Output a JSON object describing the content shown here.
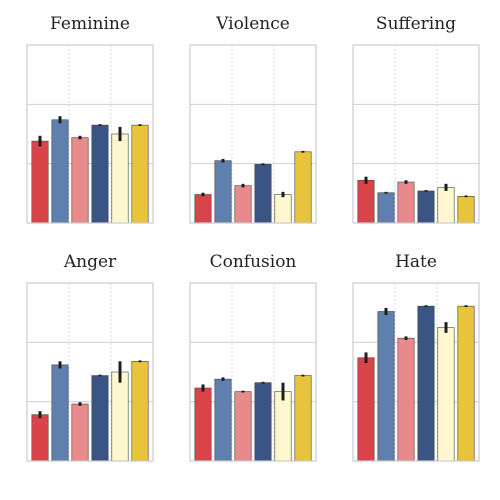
{
  "chart_data": [
    {
      "type": "bar",
      "title": "Feminine",
      "series_colors": [
        "#d9444a",
        "#5f7fae",
        "#e88a8c",
        "#3a5583",
        "#fff7cf",
        "#e8c43c"
      ],
      "ylim": [
        0,
        1
      ],
      "grid": true,
      "values": [
        0.46,
        0.58,
        0.48,
        0.55,
        0.5,
        0.55
      ],
      "errors": [
        0.03,
        0.02,
        0.01,
        0.005,
        0.04,
        0.005
      ]
    },
    {
      "type": "bar",
      "title": "Violence",
      "series_colors": [
        "#d9444a",
        "#5f7fae",
        "#e88a8c",
        "#3a5583",
        "#fff7cf",
        "#e8c43c"
      ],
      "ylim": [
        0,
        1
      ],
      "grid": true,
      "values": [
        0.16,
        0.35,
        0.21,
        0.33,
        0.16,
        0.4
      ],
      "errors": [
        0.01,
        0.01,
        0.01,
        0.005,
        0.015,
        0.005
      ]
    },
    {
      "type": "bar",
      "title": "Suffering",
      "series_colors": [
        "#d9444a",
        "#5f7fae",
        "#e88a8c",
        "#3a5583",
        "#fff7cf",
        "#e8c43c"
      ],
      "ylim": [
        0,
        1
      ],
      "grid": true,
      "values": [
        0.24,
        0.17,
        0.23,
        0.18,
        0.2,
        0.15
      ],
      "errors": [
        0.02,
        0.005,
        0.01,
        0.005,
        0.02,
        0.005
      ]
    },
    {
      "type": "bar",
      "title": "Anger",
      "series_colors": [
        "#d9444a",
        "#5f7fae",
        "#e88a8c",
        "#3a5583",
        "#fff7cf",
        "#e8c43c"
      ],
      "ylim": [
        0,
        1
      ],
      "grid": true,
      "values": [
        0.26,
        0.54,
        0.32,
        0.48,
        0.5,
        0.56
      ],
      "errors": [
        0.02,
        0.02,
        0.01,
        0.005,
        0.06,
        0.005
      ]
    },
    {
      "type": "bar",
      "title": "Confusion",
      "series_colors": [
        "#d9444a",
        "#5f7fae",
        "#e88a8c",
        "#3a5583",
        "#fff7cf",
        "#e8c43c"
      ],
      "ylim": [
        0,
        1
      ],
      "grid": true,
      "values": [
        0.41,
        0.46,
        0.39,
        0.44,
        0.39,
        0.48
      ],
      "errors": [
        0.02,
        0.01,
        0.005,
        0.005,
        0.05,
        0.005
      ]
    },
    {
      "type": "bar",
      "title": "Hate",
      "series_colors": [
        "#d9444a",
        "#5f7fae",
        "#e88a8c",
        "#3a5583",
        "#fff7cf",
        "#e8c43c"
      ],
      "ylim": [
        0,
        1
      ],
      "grid": true,
      "values": [
        0.58,
        0.84,
        0.69,
        0.87,
        0.75,
        0.87
      ],
      "errors": [
        0.03,
        0.02,
        0.01,
        0.005,
        0.03,
        0.005
      ]
    }
  ]
}
